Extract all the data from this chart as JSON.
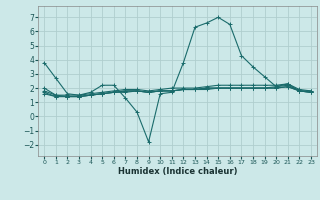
{
  "xlabel": "Humidex (Indice chaleur)",
  "bg_color": "#cce8e8",
  "grid_color": "#b0cece",
  "line_color": "#1a6b6b",
  "xlim": [
    -0.5,
    23.5
  ],
  "ylim": [
    -2.8,
    7.8
  ],
  "yticks": [
    -2,
    -1,
    0,
    1,
    2,
    3,
    4,
    5,
    6,
    7
  ],
  "xticks": [
    0,
    1,
    2,
    3,
    4,
    5,
    6,
    7,
    8,
    9,
    10,
    11,
    12,
    13,
    14,
    15,
    16,
    17,
    18,
    19,
    20,
    21,
    22,
    23
  ],
  "series": [
    {
      "x": [
        0,
        1,
        2,
        3,
        4,
        5,
        6,
        7,
        8,
        9,
        10,
        11,
        12,
        13,
        14,
        15,
        16,
        17,
        18,
        19,
        20,
        21,
        22,
        23
      ],
      "y": [
        3.8,
        2.7,
        1.6,
        1.5,
        1.7,
        2.2,
        2.2,
        1.3,
        0.3,
        -1.8,
        1.6,
        1.7,
        3.8,
        6.3,
        6.6,
        7.0,
        6.5,
        4.3,
        3.5,
        2.8,
        2.1,
        2.3,
        1.8,
        1.8
      ]
    },
    {
      "x": [
        0,
        1,
        2,
        3,
        4,
        5,
        6,
        7,
        8,
        9,
        10,
        11,
        12,
        13,
        14,
        15,
        16,
        17,
        18,
        19,
        20,
        21,
        22,
        23
      ],
      "y": [
        2.0,
        1.5,
        1.5,
        1.5,
        1.6,
        1.7,
        1.8,
        1.9,
        1.9,
        1.8,
        1.9,
        2.0,
        2.0,
        2.0,
        2.1,
        2.2,
        2.2,
        2.2,
        2.2,
        2.2,
        2.2,
        2.3,
        1.9,
        1.8
      ]
    },
    {
      "x": [
        0,
        1,
        2,
        3,
        4,
        5,
        6,
        7,
        8,
        9,
        10,
        11,
        12,
        13,
        14,
        15,
        16,
        17,
        18,
        19,
        20,
        21,
        22,
        23
      ],
      "y": [
        1.8,
        1.5,
        1.4,
        1.4,
        1.5,
        1.6,
        1.7,
        1.8,
        1.8,
        1.7,
        1.8,
        1.8,
        1.9,
        1.9,
        2.0,
        2.0,
        2.0,
        2.0,
        2.0,
        2.0,
        2.1,
        2.2,
        1.8,
        1.7
      ]
    },
    {
      "x": [
        0,
        1,
        2,
        3,
        4,
        5,
        6,
        7,
        8,
        9,
        10,
        11,
        12,
        13,
        14,
        15,
        16,
        17,
        18,
        19,
        20,
        21,
        22,
        23
      ],
      "y": [
        1.7,
        1.4,
        1.4,
        1.4,
        1.5,
        1.6,
        1.7,
        1.8,
        1.8,
        1.7,
        1.8,
        1.8,
        1.9,
        1.9,
        2.0,
        2.0,
        2.0,
        2.0,
        2.0,
        2.0,
        2.0,
        2.1,
        1.8,
        1.7
      ]
    },
    {
      "x": [
        0,
        1,
        2,
        3,
        4,
        5,
        6,
        7,
        8,
        9,
        10,
        11,
        12,
        13,
        14,
        15,
        16,
        17,
        18,
        19,
        20,
        21,
        22,
        23
      ],
      "y": [
        1.6,
        1.4,
        1.4,
        1.4,
        1.5,
        1.6,
        1.7,
        1.7,
        1.8,
        1.7,
        1.8,
        1.8,
        1.9,
        1.9,
        1.9,
        2.0,
        2.0,
        2.0,
        2.0,
        2.0,
        2.0,
        2.1,
        1.8,
        1.7
      ]
    }
  ]
}
